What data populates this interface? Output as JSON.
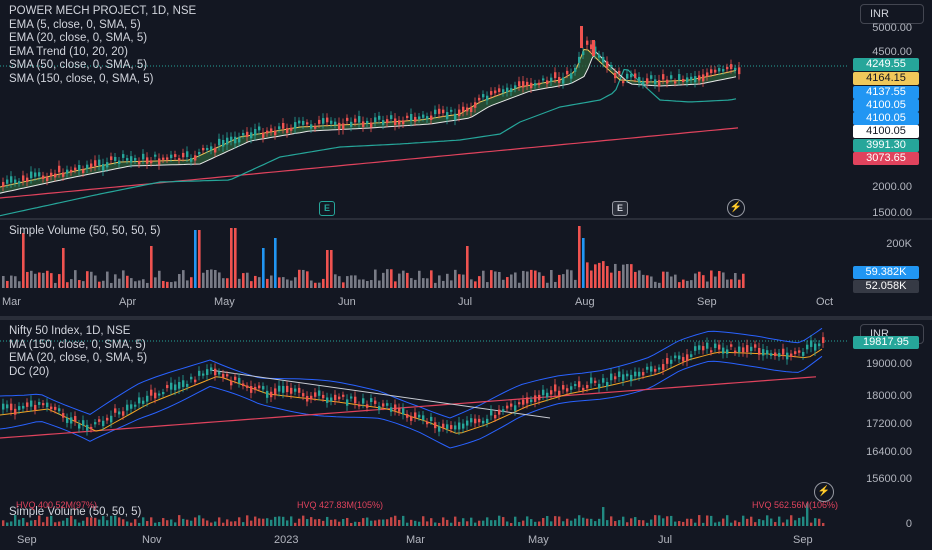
{
  "top": {
    "title": "POWER MECH PROJECT, 1D, NSE",
    "indicators": [
      "EMA (5, close, 0, SMA, 5)",
      "EMA (20, close, 0, SMA, 5)",
      "EMA Trend (10, 20, 20)",
      "SMA (50, close, 0, SMA, 5)",
      "SMA (150, close, 0, SMA, 5)"
    ],
    "currency": "INR",
    "axis": [
      "5000.00",
      "4500.00",
      "2000.00",
      "1500.00"
    ],
    "badges": [
      {
        "v": "4249.55",
        "bg": "#26a69a",
        "fg": "#ffffff"
      },
      {
        "v": "4164.15",
        "bg": "#f0c85a",
        "fg": "#131722"
      },
      {
        "v": "4137.55",
        "bg": "#2196f3",
        "fg": "#ffffff"
      },
      {
        "v": "4100.05",
        "bg": "#2196f3",
        "fg": "#ffffff"
      },
      {
        "v": "4100.05",
        "bg": "#2196f3",
        "fg": "#ffffff"
      },
      {
        "v": "4100.05",
        "bg": "#ffffff",
        "fg": "#131722"
      },
      {
        "v": "3991.30",
        "bg": "#26a69a",
        "fg": "#ffffff"
      },
      {
        "v": "3073.65",
        "bg": "#e0435d",
        "fg": "#ffffff"
      }
    ],
    "events": [
      "E",
      "E"
    ]
  },
  "volume": {
    "title": "Simple Volume (50, 50, 50, 5)",
    "axis": "200K",
    "badges": [
      {
        "v": "59.382K",
        "bg": "#2196f3",
        "fg": "#ffffff"
      },
      {
        "v": "52.058K",
        "bg": "#363a45",
        "fg": "#ffffff"
      }
    ],
    "months": [
      "Mar",
      "Apr",
      "May",
      "Jun",
      "Jul",
      "Aug",
      "Sep",
      "Oct"
    ]
  },
  "bottom": {
    "title": "Nifty 50 Index, 1D, NSE",
    "indicators": [
      "MA (150, close, 0, SMA, 5)",
      "EMA (20, close, 0, SMA, 5)",
      "DC (20)"
    ],
    "currency": "INR",
    "axis": [
      "19000.00",
      "18000.00",
      "17200.00",
      "16400.00",
      "15600.00",
      "0"
    ],
    "badge": {
      "v": "19817.95",
      "bg": "#26a69a",
      "fg": "#ffffff"
    },
    "volume_title": "Simple Volume (50, 50, 5)",
    "hvq_labels": [
      "HVQ 400.52M(97%)",
      "HVQ 427.83M(105%)",
      "HVQ 562.56M(106%)"
    ],
    "months": [
      "Sep",
      "Nov",
      "2023",
      "Mar",
      "May",
      "Jul",
      "Sep"
    ]
  }
}
